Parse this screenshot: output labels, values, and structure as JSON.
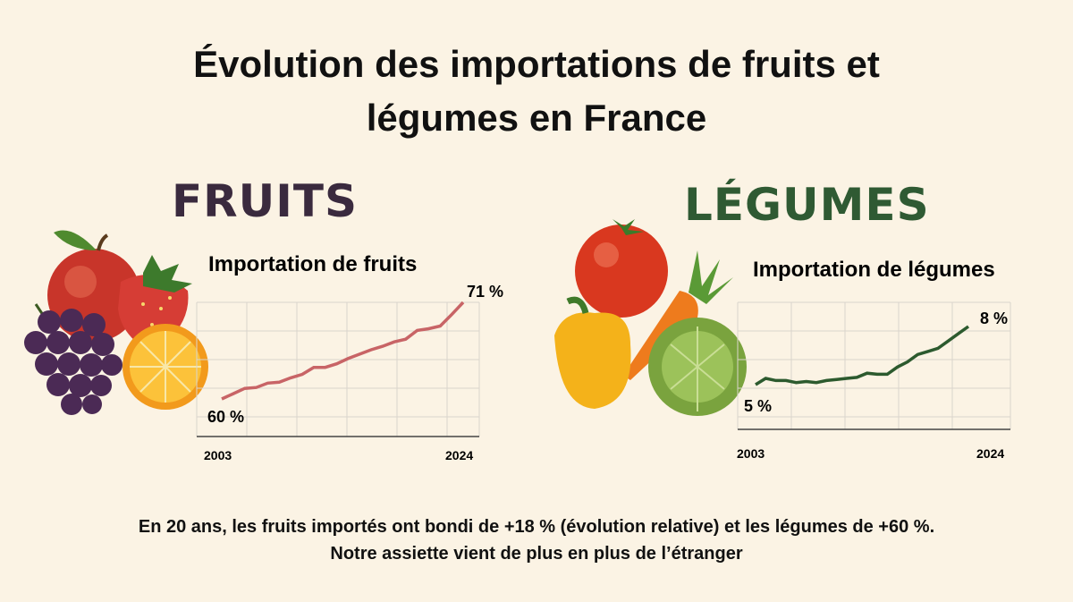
{
  "title": {
    "line1": "Évolution des importations de fruits et",
    "line2": "légumes en France"
  },
  "sections": {
    "fruits_heading": "FRUITS",
    "vegetables_heading": "LÉGUMES"
  },
  "colors": {
    "fruits_line": "#c86466",
    "vegetables_line": "#2c5a2e",
    "fruits_heading": "#3a2a3e",
    "vegetables_heading": "#2f5a33",
    "background": "#fbf3e4"
  },
  "chart_data": [
    {
      "type": "line",
      "title": "Importation de fruits",
      "x_tick_labels": [
        "2003",
        "2024"
      ],
      "xlim": [
        2003,
        2024
      ],
      "annotations": {
        "start": "60 %",
        "end": "71 %"
      },
      "grid": true,
      "series": [
        {
          "x": [
            2003,
            2004,
            2005,
            2006,
            2007,
            2008,
            2009,
            2010,
            2011,
            2012,
            2013,
            2014,
            2015,
            2016,
            2017,
            2018,
            2019,
            2020,
            2021,
            2022,
            2023,
            2024
          ],
          "values": [
            60,
            60.6,
            61.2,
            61.3,
            61.8,
            61.9,
            62.4,
            62.8,
            63.6,
            63.6,
            64.0,
            64.6,
            65.1,
            65.6,
            66.0,
            66.5,
            66.8,
            67.8,
            68.0,
            68.3,
            69.6,
            71
          ]
        }
      ]
    },
    {
      "type": "line",
      "title": "Importation de légumes",
      "x_tick_labels": [
        "2003",
        "2024"
      ],
      "xlim": [
        2003,
        2024
      ],
      "annotations": {
        "start": "5 %",
        "end": "8 %"
      },
      "grid": true,
      "series": [
        {
          "x": [
            2003,
            2004,
            2005,
            2006,
            2007,
            2008,
            2009,
            2010,
            2011,
            2012,
            2013,
            2014,
            2015,
            2016,
            2017,
            2018,
            2019,
            2020,
            2021,
            2022,
            2023,
            2024
          ],
          "values": [
            5,
            5.3,
            5.2,
            5.2,
            5.1,
            5.15,
            5.1,
            5.2,
            5.25,
            5.3,
            5.35,
            5.55,
            5.5,
            5.5,
            5.85,
            6.1,
            6.45,
            6.6,
            6.75,
            7.1,
            7.45,
            7.8
          ]
        }
      ]
    }
  ],
  "footer": {
    "line1": "En 20 ans, les fruits importés ont bondi de +18 % (évolution relative) et les légumes de +60 %.",
    "line2": "Notre assiette vient de plus en plus de l’étranger"
  }
}
